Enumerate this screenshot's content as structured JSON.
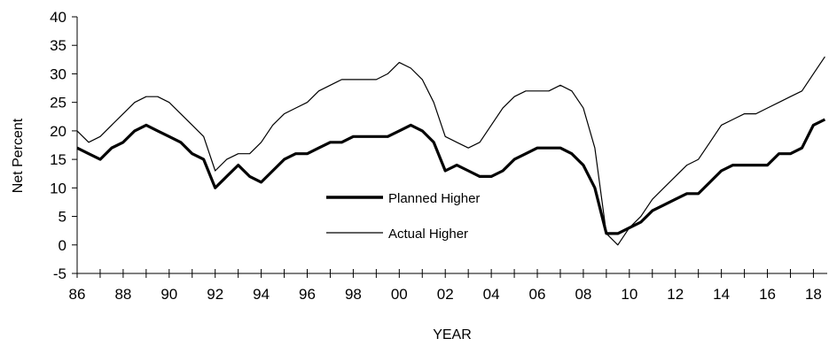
{
  "chart_data": {
    "type": "line",
    "title": "",
    "xlabel": "YEAR",
    "ylabel": "Net Percent",
    "xlim": [
      1986,
      2018.6
    ],
    "ylim": [
      -5,
      40
    ],
    "y_ticks": [
      -5,
      0,
      5,
      10,
      15,
      20,
      25,
      30,
      35,
      40
    ],
    "x_tick_labels": [
      {
        "x": 1986,
        "label": "86"
      },
      {
        "x": 1988,
        "label": "88"
      },
      {
        "x": 1990,
        "label": "90"
      },
      {
        "x": 1992,
        "label": "92"
      },
      {
        "x": 1994,
        "label": "94"
      },
      {
        "x": 1996,
        "label": "96"
      },
      {
        "x": 1998,
        "label": "98"
      },
      {
        "x": 2000,
        "label": "00"
      },
      {
        "x": 2002,
        "label": "02"
      },
      {
        "x": 2004,
        "label": "04"
      },
      {
        "x": 2006,
        "label": "06"
      },
      {
        "x": 2008,
        "label": "08"
      },
      {
        "x": 2010,
        "label": "10"
      },
      {
        "x": 2012,
        "label": "12"
      },
      {
        "x": 2014,
        "label": "14"
      },
      {
        "x": 2016,
        "label": "16"
      },
      {
        "x": 2018,
        "label": "18"
      }
    ],
    "legend": {
      "placement": "center"
    },
    "series": [
      {
        "name": "Planned Higher",
        "style": "thick",
        "color": "#000000",
        "x": [
          1986.0,
          1986.5,
          1987.0,
          1987.5,
          1988.0,
          1988.5,
          1989.0,
          1989.5,
          1990.0,
          1990.5,
          1991.0,
          1991.5,
          1992.0,
          1992.5,
          1993.0,
          1993.5,
          1994.0,
          1994.5,
          1995.0,
          1995.5,
          1996.0,
          1996.5,
          1997.0,
          1997.5,
          1998.0,
          1998.5,
          1999.0,
          1999.5,
          2000.0,
          2000.5,
          2001.0,
          2001.5,
          2002.0,
          2002.5,
          2003.0,
          2003.5,
          2004.0,
          2004.5,
          2005.0,
          2005.5,
          2006.0,
          2006.5,
          2007.0,
          2007.5,
          2008.0,
          2008.5,
          2009.0,
          2009.5,
          2010.0,
          2010.5,
          2011.0,
          2011.5,
          2012.0,
          2012.5,
          2013.0,
          2013.5,
          2014.0,
          2014.5,
          2015.0,
          2015.5,
          2016.0,
          2016.5,
          2017.0,
          2017.5,
          2018.0,
          2018.5
        ],
        "values": [
          17,
          16,
          15,
          17,
          18,
          20,
          21,
          20,
          19,
          18,
          16,
          15,
          10,
          12,
          14,
          12,
          11,
          13,
          15,
          16,
          16,
          17,
          18,
          18,
          19,
          19,
          19,
          19,
          20,
          21,
          20,
          18,
          13,
          14,
          13,
          12,
          12,
          13,
          15,
          16,
          17,
          17,
          17,
          16,
          14,
          10,
          2,
          2,
          3,
          4,
          6,
          7,
          8,
          9,
          9,
          11,
          13,
          14,
          14,
          14,
          14,
          16,
          16,
          17,
          21,
          22
        ]
      },
      {
        "name": "Actual Higher",
        "style": "thin",
        "color": "#000000",
        "x": [
          1986.0,
          1986.5,
          1987.0,
          1987.5,
          1988.0,
          1988.5,
          1989.0,
          1989.5,
          1990.0,
          1990.5,
          1991.0,
          1991.5,
          1992.0,
          1992.5,
          1993.0,
          1993.5,
          1994.0,
          1994.5,
          1995.0,
          1995.5,
          1996.0,
          1996.5,
          1997.0,
          1997.5,
          1998.0,
          1998.5,
          1999.0,
          1999.5,
          2000.0,
          2000.5,
          2001.0,
          2001.5,
          2002.0,
          2002.5,
          2003.0,
          2003.5,
          2004.0,
          2004.5,
          2005.0,
          2005.5,
          2006.0,
          2006.5,
          2007.0,
          2007.5,
          2008.0,
          2008.5,
          2009.0,
          2009.5,
          2010.0,
          2010.5,
          2011.0,
          2011.5,
          2012.0,
          2012.5,
          2013.0,
          2013.5,
          2014.0,
          2014.5,
          2015.0,
          2015.5,
          2016.0,
          2016.5,
          2017.0,
          2017.5,
          2018.0,
          2018.5
        ],
        "values": [
          20,
          18,
          19,
          21,
          23,
          25,
          26,
          26,
          25,
          23,
          21,
          19,
          13,
          15,
          16,
          16,
          18,
          21,
          23,
          24,
          25,
          27,
          28,
          29,
          29,
          29,
          29,
          30,
          32,
          31,
          29,
          25,
          19,
          18,
          17,
          18,
          21,
          24,
          26,
          27,
          27,
          27,
          28,
          27,
          24,
          17,
          2,
          0,
          3,
          5,
          8,
          10,
          12,
          14,
          15,
          18,
          21,
          22,
          23,
          23,
          24,
          25,
          26,
          27,
          30,
          33
        ]
      }
    ]
  }
}
